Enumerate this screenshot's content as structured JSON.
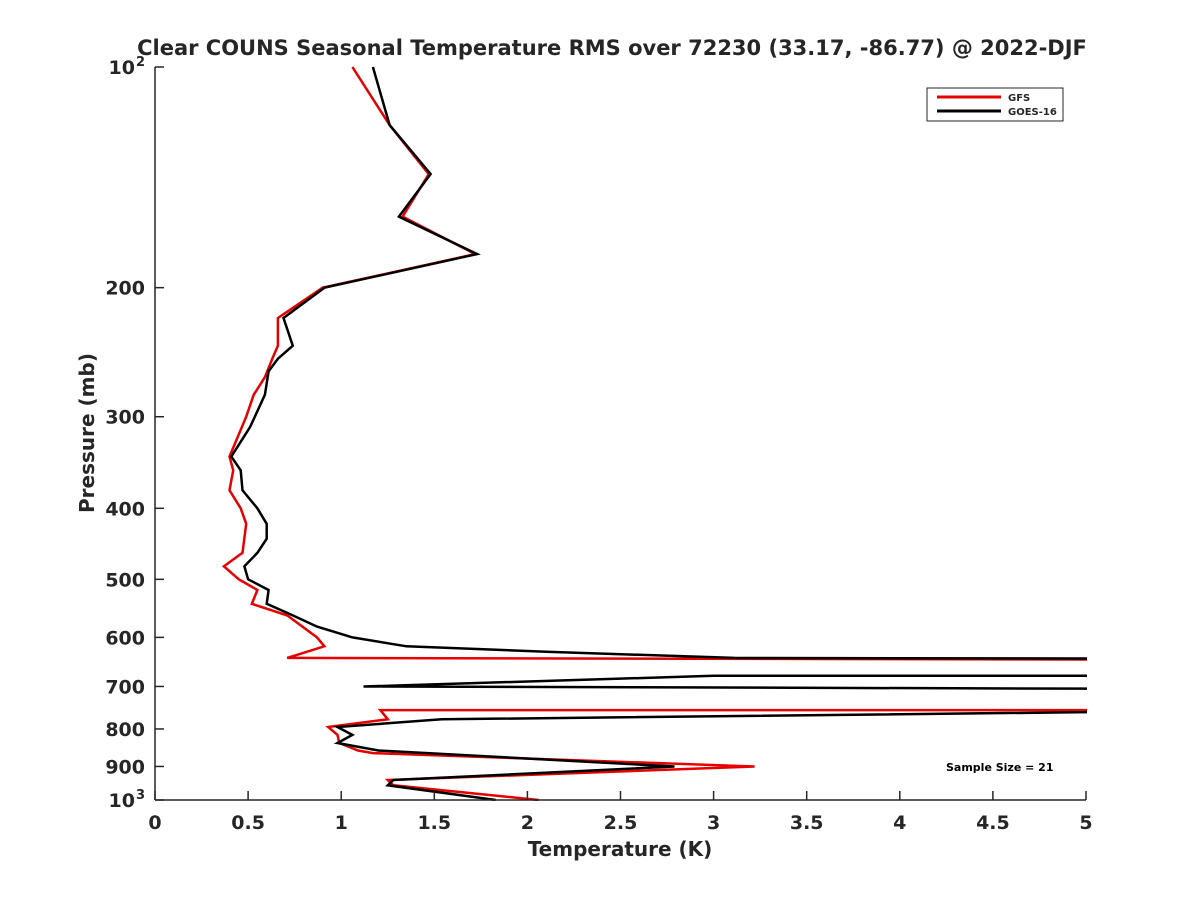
{
  "chart_data": {
    "type": "line",
    "title": "Clear COUNS Seasonal Temperature RMS over 72230 (33.17, -86.77) @ 2022-DJF",
    "xlabel": "Temperature (K)",
    "ylabel": "Pressure (mb)",
    "xlim": [
      0,
      5
    ],
    "ylim": [
      100,
      1000
    ],
    "yscale": "log",
    "y_reversed": true,
    "grid": false,
    "legend_placement": "top-right",
    "x_ticks": [
      {
        "value": 0,
        "label": "0"
      },
      {
        "value": 0.5,
        "label": "0.5"
      },
      {
        "value": 1,
        "label": "1"
      },
      {
        "value": 1.5,
        "label": "1.5"
      },
      {
        "value": 2,
        "label": "2"
      },
      {
        "value": 2.5,
        "label": "2.5"
      },
      {
        "value": 3,
        "label": "3"
      },
      {
        "value": 3.5,
        "label": "3.5"
      },
      {
        "value": 4,
        "label": "4"
      },
      {
        "value": 4.5,
        "label": "4.5"
      },
      {
        "value": 5,
        "label": "5"
      }
    ],
    "y_ticks": [
      {
        "value": 100,
        "label": "10",
        "exp": "2"
      },
      {
        "value": 200,
        "label": "200"
      },
      {
        "value": 300,
        "label": "300"
      },
      {
        "value": 400,
        "label": "400"
      },
      {
        "value": 500,
        "label": "500"
      },
      {
        "value": 600,
        "label": "600"
      },
      {
        "value": 700,
        "label": "700"
      },
      {
        "value": 800,
        "label": "800"
      },
      {
        "value": 900,
        "label": "900"
      },
      {
        "value": 1000,
        "label": "10",
        "exp": "3"
      }
    ],
    "series": [
      {
        "name": "GFS",
        "color": "#e60000",
        "points": [
          [
            1.06,
            100
          ],
          [
            1.26,
            120
          ],
          [
            1.47,
            140
          ],
          [
            1.33,
            160
          ],
          [
            1.72,
            180
          ],
          [
            0.9,
            200
          ],
          [
            0.66,
            220
          ],
          [
            0.66,
            240
          ],
          [
            0.63,
            250
          ],
          [
            0.59,
            265
          ],
          [
            0.53,
            280
          ],
          [
            0.49,
            300
          ],
          [
            0.4,
            340
          ],
          [
            0.42,
            355
          ],
          [
            0.4,
            378
          ],
          [
            0.46,
            400
          ],
          [
            0.49,
            420
          ],
          [
            0.47,
            460
          ],
          [
            0.37,
            480
          ],
          [
            0.45,
            500
          ],
          [
            0.55,
            517
          ],
          [
            0.52,
            540
          ],
          [
            0.71,
            560
          ],
          [
            0.87,
            600
          ],
          [
            0.91,
            617
          ],
          [
            0.71,
            640
          ],
          [
            6,
            644
          ],
          [
            6,
            754
          ],
          [
            1.21,
            754
          ],
          [
            1.25,
            776
          ],
          [
            0.93,
            795
          ],
          [
            0.98,
            815
          ],
          [
            0.99,
            836
          ],
          [
            1.09,
            856
          ],
          [
            1.17,
            863
          ],
          [
            3.22,
            900
          ],
          [
            1.25,
            939
          ],
          [
            1.28,
            955
          ],
          [
            2.06,
            1000
          ]
        ]
      },
      {
        "name": "GOES-16",
        "color": "#000000",
        "points": [
          [
            1.17,
            100
          ],
          [
            1.26,
            120
          ],
          [
            1.48,
            140
          ],
          [
            1.31,
            160
          ],
          [
            1.73,
            180
          ],
          [
            0.91,
            200
          ],
          [
            0.69,
            220
          ],
          [
            0.74,
            240
          ],
          [
            0.66,
            250
          ],
          [
            0.61,
            260
          ],
          [
            0.59,
            280
          ],
          [
            0.51,
            310
          ],
          [
            0.41,
            340
          ],
          [
            0.46,
            355
          ],
          [
            0.47,
            378
          ],
          [
            0.55,
            400
          ],
          [
            0.6,
            420
          ],
          [
            0.6,
            440
          ],
          [
            0.55,
            460
          ],
          [
            0.48,
            480
          ],
          [
            0.5,
            500
          ],
          [
            0.61,
            517
          ],
          [
            0.6,
            540
          ],
          [
            0.74,
            560
          ],
          [
            0.87,
            580
          ],
          [
            1.06,
            600
          ],
          [
            1.35,
            617
          ],
          [
            2.12,
            628
          ],
          [
            3.11,
            640
          ],
          [
            6,
            642
          ],
          [
            6,
            677
          ],
          [
            3.0,
            677
          ],
          [
            1.12,
            700
          ],
          [
            6,
            706
          ],
          [
            6,
            754
          ],
          [
            1.54,
            776
          ],
          [
            0.98,
            795
          ],
          [
            1.06,
            815
          ],
          [
            0.98,
            836
          ],
          [
            1.2,
            856
          ],
          [
            2.79,
            900
          ],
          [
            1.28,
            939
          ],
          [
            1.25,
            955
          ],
          [
            1.83,
            1000
          ]
        ]
      }
    ],
    "annotation": "Sample Size = 21"
  }
}
